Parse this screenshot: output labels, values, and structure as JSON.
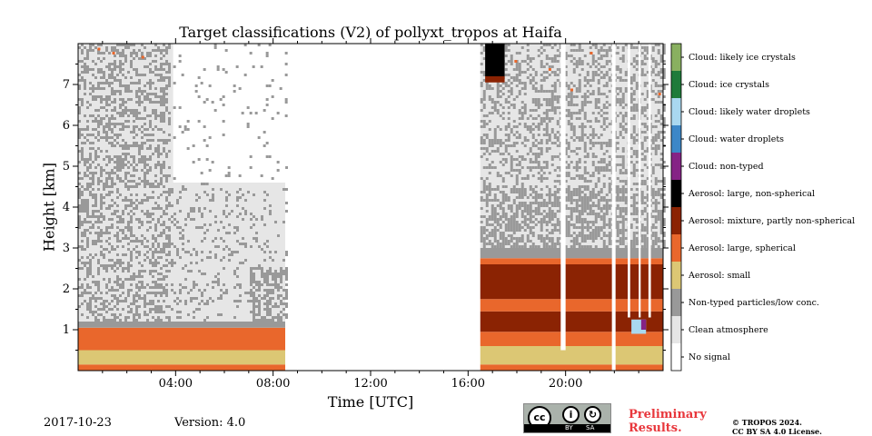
{
  "chart_data": {
    "type": "heatmap",
    "title": "Target classifications (V2) of pollyxt_tropos at Haifa",
    "xlabel": "Time [UTC]",
    "ylabel": "Height [km]",
    "xlim": [
      0,
      24
    ],
    "ylim": [
      0,
      8
    ],
    "xticks": [
      {
        "value": 4,
        "label": "04:00"
      },
      {
        "value": 8,
        "label": "08:00"
      },
      {
        "value": 12,
        "label": "12:00"
      },
      {
        "value": 16,
        "label": "16:00"
      },
      {
        "value": 20,
        "label": "20:00"
      }
    ],
    "yticks": [
      1,
      2,
      3,
      4,
      5,
      6,
      7
    ],
    "classes": [
      {
        "label": "Cloud: likely ice crystals",
        "color": "#89b060"
      },
      {
        "label": "Cloud: ice crystals",
        "color": "#1e7b3a"
      },
      {
        "label": "Cloud: likely water droplets",
        "color": "#a9d8f0"
      },
      {
        "label": "Cloud: water droplets",
        "color": "#3c87c8"
      },
      {
        "label": "Cloud: non-typed",
        "color": "#852385"
      },
      {
        "label": "Aerosol: large, non-spherical",
        "color": "#000000"
      },
      {
        "label": "Aerosol: mixture, partly non-spherical",
        "color": "#8b2303"
      },
      {
        "label": "Aerosol: large, spherical",
        "color": "#e9672c"
      },
      {
        "label": "Aerosol: small",
        "color": "#dcc774"
      },
      {
        "label": "Non-typed particles/low conc.",
        "color": "#999999"
      },
      {
        "label": "Clean atmosphere",
        "color": "#e6e6e6"
      },
      {
        "label": "No signal",
        "color": "#ffffff"
      }
    ],
    "profiles": [
      {
        "time_range": [
          0,
          8.5
        ],
        "layers": [
          {
            "class": "Aerosol: large, spherical",
            "height_km": [
              0,
              0.15
            ]
          },
          {
            "class": "Aerosol: small",
            "height_km": [
              0.15,
              0.5
            ]
          },
          {
            "class": "Aerosol: large, spherical",
            "height_km": [
              0.5,
              1.05
            ]
          },
          {
            "class": "Non-typed particles/low conc.",
            "height_km": [
              1.05,
              1.2
            ]
          },
          {
            "class": "Clean atmosphere",
            "height_km": [
              1.2,
              8.0
            ],
            "note": "speckled with non-typed particles; thinning after 04:00"
          }
        ]
      },
      {
        "time_range": [
          8.5,
          16.5
        ],
        "layers": [
          {
            "class": "No signal",
            "height_km": [
              0,
              8.0
            ]
          }
        ]
      },
      {
        "time_range": [
          16.5,
          24
        ],
        "layers": [
          {
            "class": "Aerosol: large, spherical",
            "height_km": [
              0,
              0.15
            ]
          },
          {
            "class": "Aerosol: small",
            "height_km": [
              0.15,
              0.6
            ]
          },
          {
            "class": "Aerosol: large, spherical",
            "height_km": [
              0.6,
              0.95
            ]
          },
          {
            "class": "Aerosol: mixture, partly non-spherical",
            "height_km": [
              0.95,
              1.45
            ]
          },
          {
            "class": "Aerosol: large, spherical",
            "height_km": [
              1.45,
              1.75
            ]
          },
          {
            "class": "Aerosol: mixture, partly non-spherical",
            "height_km": [
              1.75,
              2.6
            ]
          },
          {
            "class": "Aerosol: large, spherical",
            "height_km": [
              2.6,
              2.75
            ]
          },
          {
            "class": "Non-typed particles/low conc.",
            "height_km": [
              2.75,
              3.0
            ]
          },
          {
            "class": "Clean atmosphere",
            "height_km": [
              3.0,
              8.0
            ],
            "note": "speckled with non-typed particles"
          }
        ]
      }
    ],
    "features": [
      {
        "class": "Aerosol: large, non-spherical",
        "time_range": [
          16.7,
          17.5
        ],
        "height_km": [
          7.2,
          8.0
        ]
      },
      {
        "class": "No signal",
        "time_range": [
          19.8,
          20.0
        ],
        "height_km": [
          0.5,
          8.0
        ]
      },
      {
        "class": "No signal",
        "time_range": [
          21.9,
          22.05
        ],
        "height_km": [
          0,
          8.0
        ]
      },
      {
        "class": "Cloud: likely water droplets",
        "time_range": [
          22.7,
          23.3
        ],
        "height_km": [
          0.9,
          1.25
        ]
      },
      {
        "class": "Cloud: non-typed",
        "time_range": [
          23.1,
          23.3
        ],
        "height_km": [
          1.0,
          1.25
        ]
      }
    ]
  },
  "footer": {
    "date": "2017-10-23",
    "version": "Version: 4.0",
    "preliminary_line1": "Preliminary",
    "preliminary_line2": "Results.",
    "copyright_line1": "© TROPOS 2024.",
    "copyright_line2": "CC BY SA 4.0 License.",
    "license_badge": {
      "cc": "cc",
      "by": "BY",
      "sa": "SA"
    }
  }
}
